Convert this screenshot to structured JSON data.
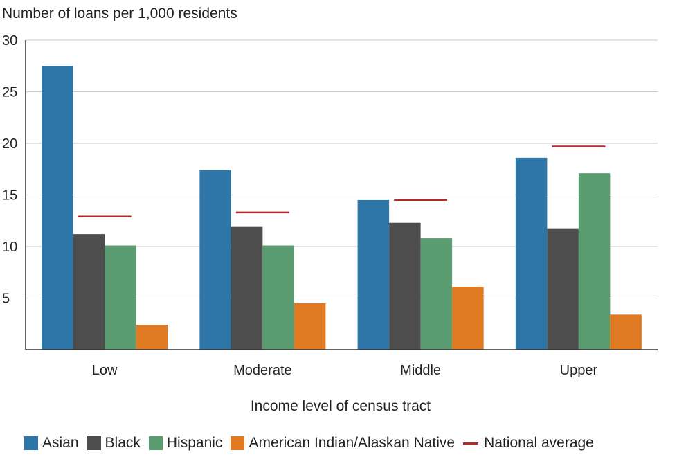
{
  "chart_data": {
    "type": "bar",
    "ylabel": "Number of loans per 1,000 residents",
    "xlabel": "Income level of census tract",
    "categories": [
      "Low",
      "Moderate",
      "Middle",
      "Upper"
    ],
    "series": [
      {
        "name": "Asian",
        "color": "#2e75a8",
        "values": [
          27.5,
          17.4,
          14.5,
          18.6
        ]
      },
      {
        "name": "Black",
        "color": "#4d4d4d",
        "values": [
          11.2,
          11.9,
          12.3,
          11.7
        ]
      },
      {
        "name": "Hispanic",
        "color": "#5a9b70",
        "values": [
          10.1,
          10.1,
          10.8,
          17.1
        ]
      },
      {
        "name": "American Indian/Alaskan Native",
        "color": "#e07a22",
        "values": [
          2.4,
          4.5,
          6.1,
          3.4
        ]
      }
    ],
    "reference": {
      "name": "National average",
      "color": "#b22a2a",
      "values": [
        12.9,
        13.3,
        14.5,
        19.7
      ]
    },
    "ylim": [
      0,
      30
    ],
    "yticks": [
      5,
      10,
      15,
      20,
      25,
      30
    ],
    "grid": true,
    "legend": "bottom"
  }
}
